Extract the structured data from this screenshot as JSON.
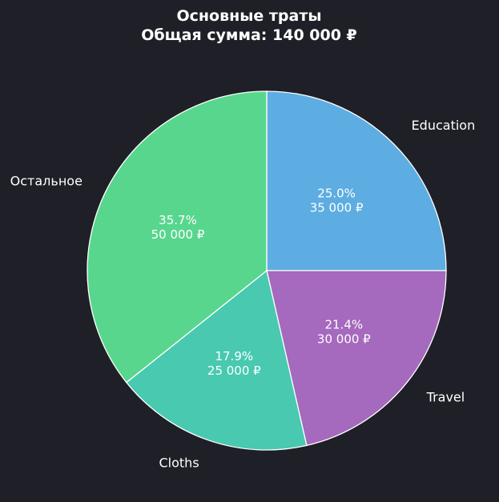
{
  "chart_data": {
    "type": "pie",
    "title": "Основные траты",
    "subtitle": "Общая сумма: 140 000 ₽",
    "slices": [
      {
        "label": "Education",
        "value": 35000,
        "percent": "25.0%",
        "amount": "35 000 ₽",
        "color": "#5dade2"
      },
      {
        "label": "Travel",
        "value": 30000,
        "percent": "21.4%",
        "amount": "30 000 ₽",
        "color": "#a569bd"
      },
      {
        "label": "Cloths",
        "value": 25000,
        "percent": "17.9%",
        "amount": "25 000 ₽",
        "color": "#48c9b0"
      },
      {
        "label": "Остальное",
        "value": 50000,
        "percent": "35.7%",
        "amount": "50 000 ₽",
        "color": "#58d68d"
      }
    ],
    "start": "top",
    "direction": "clockwise",
    "background": "#1f2027"
  }
}
